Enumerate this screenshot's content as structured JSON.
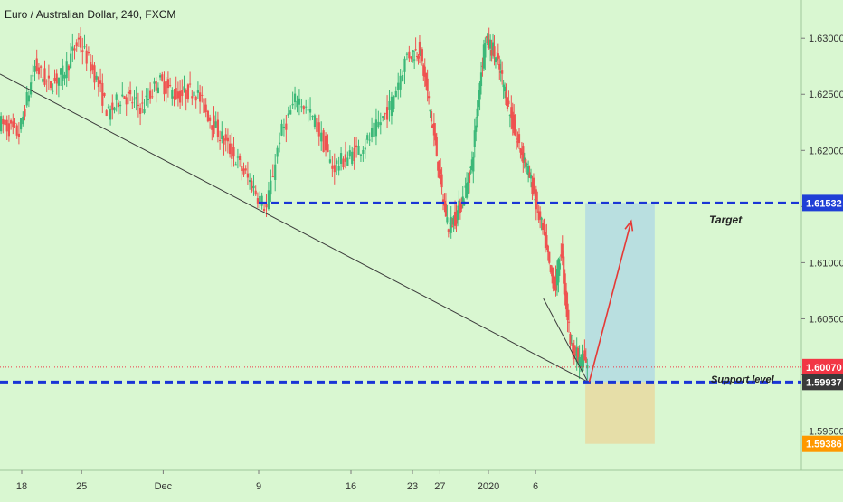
{
  "header": {
    "title": "Euro / Australian Dollar, 240, FXCM"
  },
  "annotations": {
    "target_label": "Target",
    "support_label": "Support level"
  },
  "colors": {
    "background": "#d9f7d1",
    "up_candle": "#3cb878",
    "down_candle": "#ef5350",
    "level_line": "#1a35d6",
    "trendline": "#3b3b3b",
    "profit_zone": "#b9dfe0",
    "loss_zone": "#e6dea8",
    "arrow": "#e53935",
    "price_badge_red": "#f23645",
    "price_badge_dark": "#3a3a3a",
    "price_badge_blue": "#1f3fd6",
    "price_badge_orange": "#ff9800"
  },
  "chart_data": {
    "type": "candlestick",
    "title": "Euro / Australian Dollar, 240, FXCM",
    "y_ticks": [
      1.595,
      1.6,
      1.605,
      1.61,
      1.615,
      1.62,
      1.625,
      1.63
    ],
    "y_tick_labels": [
      "1.59500",
      "1.60000",
      "1.60500",
      "1.61000",
      "1.61500",
      "1.62000",
      "1.62500",
      "1.63000"
    ],
    "x_tick_labels": [
      "18",
      "25",
      "Dec",
      "9",
      "16",
      "23",
      "27",
      "2020",
      "6"
    ],
    "ylim": [
      1.5915,
      1.6334
    ],
    "grid": false,
    "price_labels": [
      {
        "value": "1.61532",
        "kind": "blue"
      },
      {
        "value": "1.60070",
        "kind": "red"
      },
      {
        "value": "1.59937",
        "kind": "dark"
      },
      {
        "value": "1.59386",
        "kind": "orange"
      }
    ],
    "levels": {
      "target": 1.61532,
      "current": 1.6007,
      "support": 1.59937,
      "stop": 1.59386
    },
    "series_anchor_points": [
      [
        0,
        1.6225
      ],
      [
        10,
        1.6215
      ],
      [
        18,
        1.6275
      ],
      [
        25,
        1.6258
      ],
      [
        32,
        1.6268
      ],
      [
        40,
        1.6298
      ],
      [
        48,
        1.6268
      ],
      [
        55,
        1.6232
      ],
      [
        62,
        1.625
      ],
      [
        72,
        1.6238
      ],
      [
        80,
        1.6262
      ],
      [
        90,
        1.6248
      ],
      [
        98,
        1.6255
      ],
      [
        108,
        1.6222
      ],
      [
        118,
        1.6195
      ],
      [
        126,
        1.6172
      ],
      [
        134,
        1.6148
      ],
      [
        140,
        1.6212
      ],
      [
        148,
        1.6248
      ],
      [
        156,
        1.6226
      ],
      [
        164,
        1.6185
      ],
      [
        172,
        1.6195
      ],
      [
        180,
        1.6208
      ],
      [
        190,
        1.6238
      ],
      [
        198,
        1.6285
      ],
      [
        206,
        1.629
      ],
      [
        212,
        1.625
      ],
      [
        218,
        1.6205
      ],
      [
        224,
        1.6155
      ],
      [
        228,
        1.6132
      ],
      [
        234,
        1.6142
      ],
      [
        240,
        1.616
      ],
      [
        246,
        1.6188
      ],
      [
        252,
        1.6262
      ],
      [
        256,
        1.63
      ],
      [
        262,
        1.629
      ],
      [
        268,
        1.6268
      ],
      [
        274,
        1.6238
      ],
      [
        280,
        1.621
      ],
      [
        286,
        1.6192
      ],
      [
        292,
        1.6168
      ],
      [
        297,
        1.6142
      ],
      [
        302,
        1.6118
      ],
      [
        306,
        1.609
      ],
      [
        310,
        1.608
      ],
      [
        314,
        1.6112
      ],
      [
        318,
        1.6062
      ],
      [
        321,
        1.6032
      ],
      [
        324,
        1.6022
      ],
      [
        328,
        1.6012
      ],
      [
        331,
        1.6015
      ],
      [
        334,
        1.6005
      ]
    ],
    "series_x_range": [
      0,
      334
    ],
    "index_anchors": [
      [
        0,
        0
      ],
      [
        130,
        286
      ],
      [
        200,
        456
      ],
      [
        334,
        650
      ]
    ],
    "trendline": {
      "from": [
        0,
        1.6268
      ],
      "to": [
        334,
        1.59937
      ]
    },
    "wedge_upper": {
      "from": [
        300,
        1.6068
      ],
      "to": [
        334,
        1.59937
      ]
    },
    "trade_box": {
      "x_start": 332,
      "x_end": 385
    },
    "arrow": {
      "from": [
        335,
        1.59937
      ],
      "to": [
        367,
        1.6137
      ]
    }
  }
}
